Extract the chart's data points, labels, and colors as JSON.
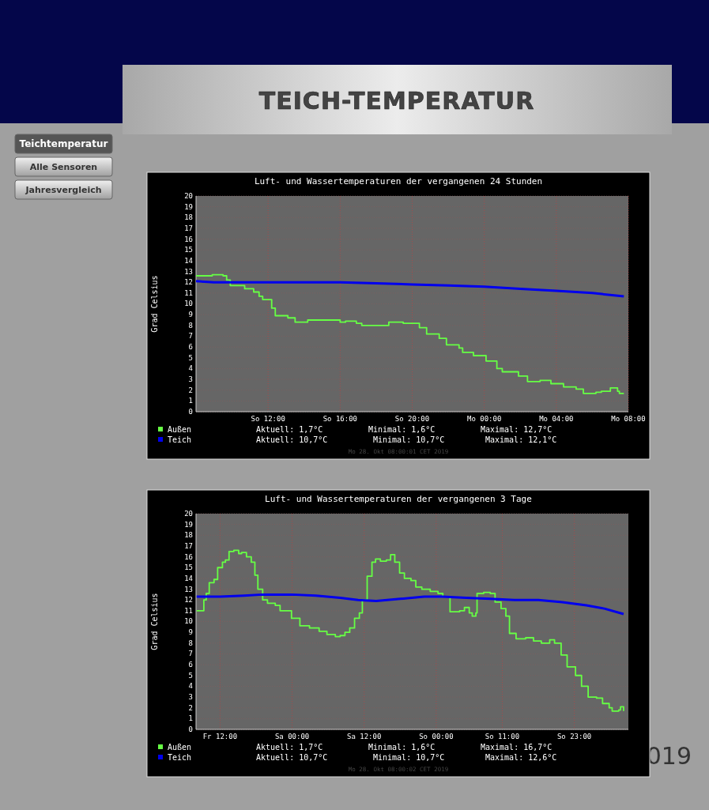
{
  "chart_data": [
    {
      "type": "other",
      "title": "TEICH-TEMPERATUR",
      "annotations": [
        "Teichtemperatur",
        "Alle Sensoren",
        "Jahresvergleich",
        "019"
      ]
    },
    {
      "type": "line",
      "title": "Luft- und Wassertemperaturen der vergangenen 24 Stunden",
      "ylabel": "Grad Celsius",
      "xlim": [
        "2019-10-27T08:00",
        "2019-10-28T08:00"
      ],
      "ylim": [
        0,
        20
      ],
      "yticks": [
        0,
        1,
        2,
        3,
        4,
        5,
        6,
        7,
        8,
        9,
        10,
        11,
        12,
        13,
        14,
        15,
        16,
        17,
        18,
        19,
        20
      ],
      "xticks": [
        {
          "value": "2019-10-27T12:00",
          "label": "So 12:00"
        },
        {
          "value": "2019-10-27T16:00",
          "label": "So 16:00"
        },
        {
          "value": "2019-10-27T20:00",
          "label": "So 20:00"
        },
        {
          "value": "2019-10-28T00:00",
          "label": "Mo 00:00"
        },
        {
          "value": "2019-10-28T04:00",
          "label": "Mo 04:00"
        },
        {
          "value": "2019-10-28T08:00",
          "label": "Mo 08:00"
        }
      ],
      "grid": true,
      "legend": "bottom",
      "series": [
        {
          "name": "Außen",
          "type": "step",
          "color": "#66ff44",
          "x": [
            "2019-10-27T08:00",
            "2019-10-27T08:54",
            "2019-10-27T09:30",
            "2019-10-27T09:42",
            "2019-10-27T09:54",
            "2019-10-27T10:42",
            "2019-10-27T11:12",
            "2019-10-27T11:30",
            "2019-10-27T11:42",
            "2019-10-27T12:12",
            "2019-10-27T12:24",
            "2019-10-27T13:06",
            "2019-10-27T13:30",
            "2019-10-27T14:12",
            "2019-10-27T14:42",
            "2019-10-27T15:18",
            "2019-10-27T16:00",
            "2019-10-27T16:18",
            "2019-10-27T16:54",
            "2019-10-27T17:12",
            "2019-10-27T18:18",
            "2019-10-27T18:42",
            "2019-10-27T19:30",
            "2019-10-27T19:54",
            "2019-10-27T20:24",
            "2019-10-27T20:48",
            "2019-10-27T21:30",
            "2019-10-27T21:54",
            "2019-10-27T22:36",
            "2019-10-27T22:48",
            "2019-10-27T23:24",
            "2019-10-28T00:06",
            "2019-10-28T00:42",
            "2019-10-28T01:00",
            "2019-10-28T01:54",
            "2019-10-28T02:24",
            "2019-10-28T03:06",
            "2019-10-28T03:42",
            "2019-10-28T04:24",
            "2019-10-28T05:06",
            "2019-10-28T05:30",
            "2019-10-28T06:12",
            "2019-10-28T06:30",
            "2019-10-28T07:00",
            "2019-10-28T07:24",
            "2019-10-28T07:30",
            "2019-10-28T07:45"
          ],
          "values": [
            12.6,
            12.7,
            12.6,
            12.2,
            11.7,
            11.4,
            11.1,
            10.7,
            10.4,
            9.6,
            8.9,
            8.7,
            8.3,
            8.5,
            8.5,
            8.5,
            8.3,
            8.4,
            8.2,
            8.0,
            8.0,
            8.3,
            8.2,
            8.2,
            7.8,
            7.2,
            6.8,
            6.2,
            5.9,
            5.5,
            5.2,
            4.7,
            4.0,
            3.7,
            3.3,
            2.8,
            2.9,
            2.6,
            2.3,
            2.1,
            1.7,
            1.8,
            1.9,
            2.2,
            1.9,
            1.7,
            1.7
          ]
        },
        {
          "name": "Teich",
          "type": "line",
          "color": "#0000ee",
          "x": [
            "2019-10-27T08:00",
            "2019-10-27T09:00",
            "2019-10-27T16:00",
            "2019-10-27T18:00",
            "2019-10-27T20:00",
            "2019-10-27T22:00",
            "2019-10-28T00:00",
            "2019-10-28T02:00",
            "2019-10-28T04:00",
            "2019-10-28T06:00",
            "2019-10-28T07:45"
          ],
          "values": [
            12.1,
            12.0,
            12.0,
            11.9,
            11.8,
            11.7,
            11.6,
            11.4,
            11.2,
            11.0,
            10.7
          ]
        }
      ],
      "annotations": [
        "Aktuell: 1,7°C",
        "Minimal: 1,6°C",
        "Maximal: 12,7°C",
        "Aktuell: 10,7°C",
        "Minimal: 10,7°C",
        "Maximal: 12,1°C",
        "Mo 28. Okt 08:00:01 CET 2019"
      ]
    },
    {
      "type": "line",
      "title": "Luft- und Wassertemperaturen der vergangenen 3 Tage",
      "ylabel": "Grad Celsius",
      "xlim": [
        "2019-10-25T08:00",
        "2019-10-28T08:00"
      ],
      "ylim": [
        0,
        20
      ],
      "yticks": [
        0,
        1,
        2,
        3,
        4,
        5,
        6,
        7,
        8,
        9,
        10,
        11,
        12,
        13,
        14,
        15,
        16,
        17,
        18,
        19,
        20
      ],
      "xticks": [
        {
          "value": "2019-10-25T12:00",
          "label": "Fr 12:00"
        },
        {
          "value": "2019-10-26T00:00",
          "label": "Sa 00:00"
        },
        {
          "value": "2019-10-26T12:00",
          "label": "Sa 12:00"
        },
        {
          "value": "2019-10-27T00:00",
          "label": "So 00:00"
        },
        {
          "value": "2019-10-27T11:00",
          "label": "So 11:00"
        },
        {
          "value": "2019-10-27T23:00",
          "label": "So 23:00"
        }
      ],
      "grid": true,
      "legend": "bottom",
      "series": [
        {
          "name": "Außen",
          "type": "step",
          "color": "#66ff44",
          "x": [
            "2019-10-25T08:06",
            "2019-10-25T08:54",
            "2019-10-25T09:18",
            "2019-10-25T09:42",
            "2019-10-25T10:12",
            "2019-10-25T11:00",
            "2019-10-25T11:36",
            "2019-10-25T12:24",
            "2019-10-25T12:54",
            "2019-10-25T13:30",
            "2019-10-25T14:18",
            "2019-10-25T15:06",
            "2019-10-25T15:36",
            "2019-10-25T16:24",
            "2019-10-25T17:12",
            "2019-10-25T17:48",
            "2019-10-25T18:18",
            "2019-10-25T19:06",
            "2019-10-25T19:54",
            "2019-10-25T21:12",
            "2019-10-25T22:00",
            "2019-10-25T23:06",
            "2019-10-25T23:54",
            "2019-10-26T01:18",
            "2019-10-26T02:54",
            "2019-10-26T04:30",
            "2019-10-26T05:48",
            "2019-10-26T07:12",
            "2019-10-26T08:00",
            "2019-10-26T08:48",
            "2019-10-26T09:36",
            "2019-10-26T10:24",
            "2019-10-26T11:12",
            "2019-10-26T11:42",
            "2019-10-26T12:30",
            "2019-10-26T13:18",
            "2019-10-26T13:54",
            "2019-10-26T14:42",
            "2019-10-26T15:42",
            "2019-10-26T16:24",
            "2019-10-26T17:06",
            "2019-10-26T17:54",
            "2019-10-26T18:42",
            "2019-10-26T19:48",
            "2019-10-26T20:36",
            "2019-10-26T21:36",
            "2019-10-26T23:00",
            "2019-10-27T00:18",
            "2019-10-27T01:06",
            "2019-10-27T02:18",
            "2019-10-27T03:54",
            "2019-10-27T04:42",
            "2019-10-27T05:30",
            "2019-10-27T06:00",
            "2019-10-27T06:36",
            "2019-10-27T06:48",
            "2019-10-27T07:54",
            "2019-10-27T09:00",
            "2019-10-27T09:48",
            "2019-10-27T10:48",
            "2019-10-27T11:36",
            "2019-10-27T12:12",
            "2019-10-27T13:18",
            "2019-10-27T14:54",
            "2019-10-27T16:12",
            "2019-10-27T17:30",
            "2019-10-27T18:54",
            "2019-10-27T19:42",
            "2019-10-27T20:48",
            "2019-10-27T21:48",
            "2019-10-27T23:12",
            "2019-10-28T00:12",
            "2019-10-28T01:18",
            "2019-10-28T02:42",
            "2019-10-28T03:42",
            "2019-10-28T04:48",
            "2019-10-28T05:18",
            "2019-10-28T06:24",
            "2019-10-28T06:42",
            "2019-10-28T07:12"
          ],
          "values": [
            11.0,
            11.0,
            12.0,
            12.6,
            13.6,
            13.9,
            15.0,
            15.5,
            15.7,
            16.5,
            16.6,
            16.3,
            16.4,
            16.0,
            15.5,
            14.3,
            13.0,
            12.0,
            11.7,
            11.5,
            11.0,
            11.0,
            10.3,
            9.6,
            9.4,
            9.1,
            8.8,
            8.6,
            8.7,
            9.0,
            9.4,
            10.3,
            10.8,
            12.0,
            14.2,
            15.5,
            15.8,
            15.6,
            15.7,
            16.2,
            15.5,
            14.5,
            14.0,
            13.8,
            13.2,
            13.0,
            12.8,
            12.6,
            12.3,
            10.9,
            11.0,
            11.3,
            10.8,
            10.5,
            10.8,
            12.6,
            12.7,
            12.6,
            11.8,
            11.2,
            10.5,
            8.9,
            8.4,
            8.5,
            8.2,
            8.0,
            8.3,
            8.0,
            6.9,
            5.8,
            5.0,
            4.0,
            3.0,
            2.9,
            2.4,
            2.0,
            1.7,
            1.8,
            2.1,
            1.7
          ]
        },
        {
          "name": "Teich",
          "type": "line",
          "color": "#0000ee",
          "x": [
            "2019-10-25T08:06",
            "2019-10-25T12:00",
            "2019-10-25T16:00",
            "2019-10-25T19:00",
            "2019-10-26T00:00",
            "2019-10-26T04:00",
            "2019-10-26T08:00",
            "2019-10-26T11:00",
            "2019-10-26T14:00",
            "2019-10-26T18:00",
            "2019-10-26T22:00",
            "2019-10-27T01:00",
            "2019-10-27T05:00",
            "2019-10-27T09:00",
            "2019-10-27T13:00",
            "2019-10-27T17:00",
            "2019-10-27T21:00",
            "2019-10-28T01:00",
            "2019-10-28T04:00",
            "2019-10-28T07:12"
          ],
          "values": [
            12.3,
            12.3,
            12.4,
            12.5,
            12.5,
            12.4,
            12.2,
            12.0,
            11.9,
            12.1,
            12.3,
            12.3,
            12.2,
            12.1,
            12.0,
            12.0,
            11.8,
            11.5,
            11.2,
            10.7
          ]
        }
      ],
      "annotations": [
        "Aktuell: 1,7°C",
        "Minimal: 1,6°C",
        "Maximal: 16,7°C",
        "Aktuell: 10,7°C",
        "Minimal: 10,7°C",
        "Maximal: 12,6°C",
        "Mo 28. Okt 08:00:02 CET 2019"
      ]
    }
  ]
}
